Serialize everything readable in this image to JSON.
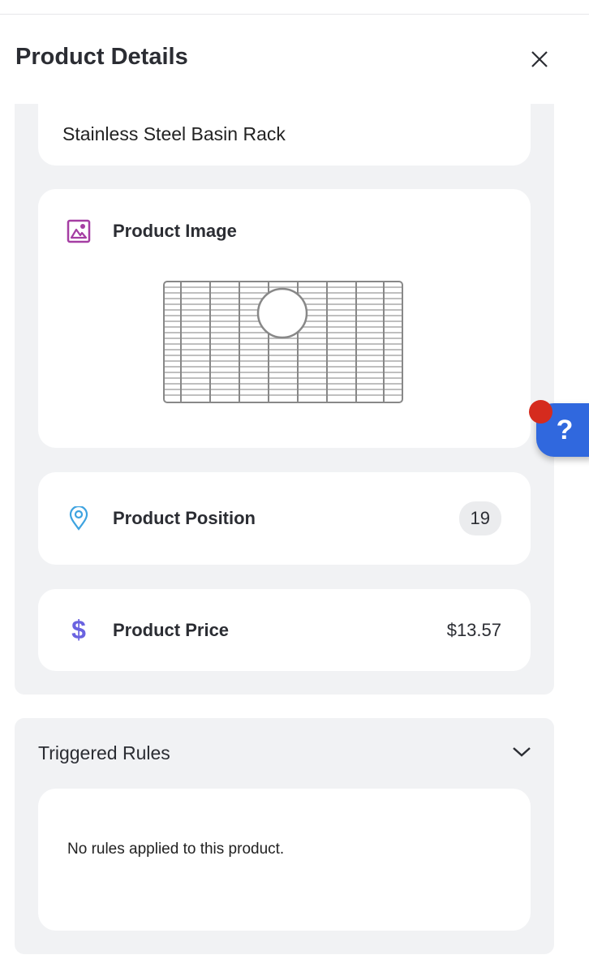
{
  "header": {
    "title": "Product Details",
    "close_icon": "close-icon"
  },
  "product": {
    "name": "Stainless Steel Basin Rack",
    "image_label": "Product Image",
    "position_label": "Product Position",
    "position_value": "19",
    "price_label": "Product Price",
    "price_value": "$13.57"
  },
  "rules": {
    "title": "Triggered Rules",
    "empty_text": "No rules applied to this product."
  },
  "help": {
    "label": "?"
  },
  "colors": {
    "image_icon": "#a53ea3",
    "position_icon": "#3ea3e0",
    "price_icon": "#6a63e0",
    "help_button": "#3068de",
    "notification_dot": "#d52b1e",
    "panel": "#f1f2f4"
  }
}
